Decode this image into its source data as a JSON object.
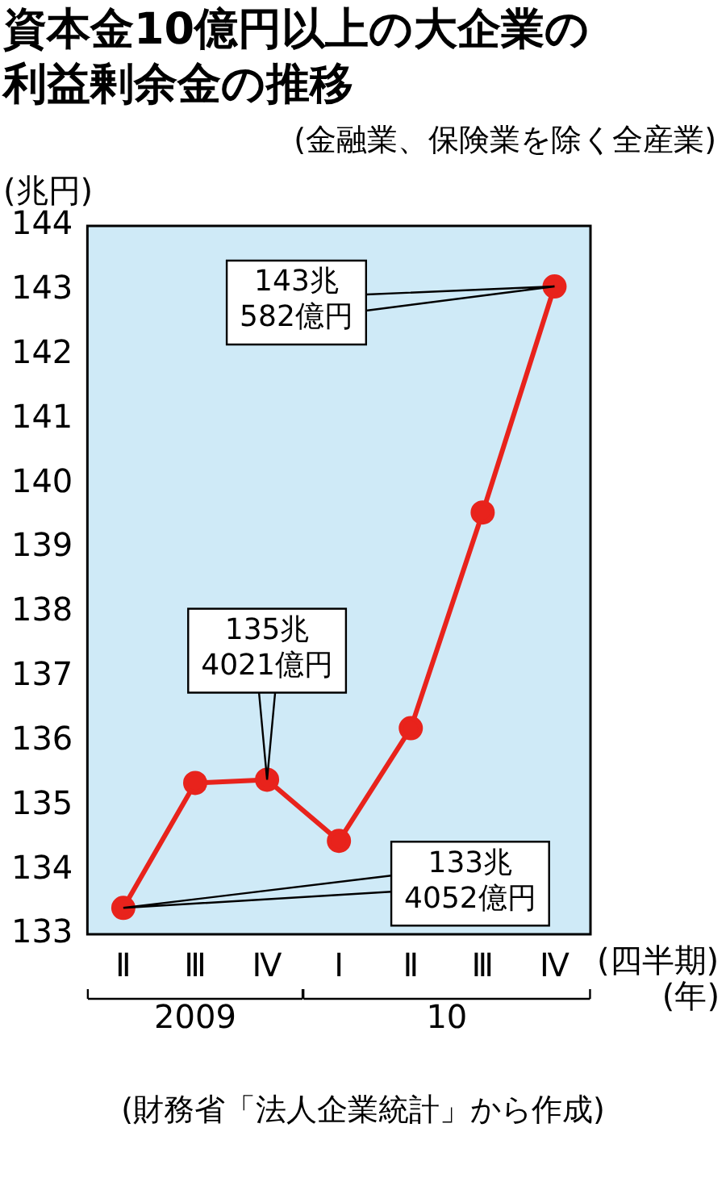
{
  "chart_data": {
    "type": "line",
    "title": "資本金10億円以上の大企業の利益剰余金の推移",
    "subtitle": "(金融業、保険業を除く全産業)",
    "ylabel": "(兆円)",
    "xlabel": "(四半期)",
    "categories": [
      "Ⅱ",
      "Ⅲ",
      "Ⅳ",
      "Ⅰ",
      "Ⅱ",
      "Ⅲ",
      "Ⅳ"
    ],
    "series": [
      {
        "color": "#e8231c",
        "values": [
          133.41,
          135.35,
          135.4,
          134.45,
          136.2,
          139.55,
          143.06
        ]
      }
    ],
    "ylim": [
      133,
      144
    ],
    "yticks": [
      133,
      134,
      135,
      136,
      137,
      138,
      139,
      140,
      141,
      142,
      143,
      144
    ],
    "grid": false,
    "legend": false,
    "marker": "circle",
    "line_style": "solid",
    "annotations": [
      "143兆\n582億円",
      "135兆\n4021億円",
      "133兆\n4052億円",
      "2009",
      "10",
      "(年)",
      "(財務省「法人企業統計」から作成)"
    ]
  }
}
